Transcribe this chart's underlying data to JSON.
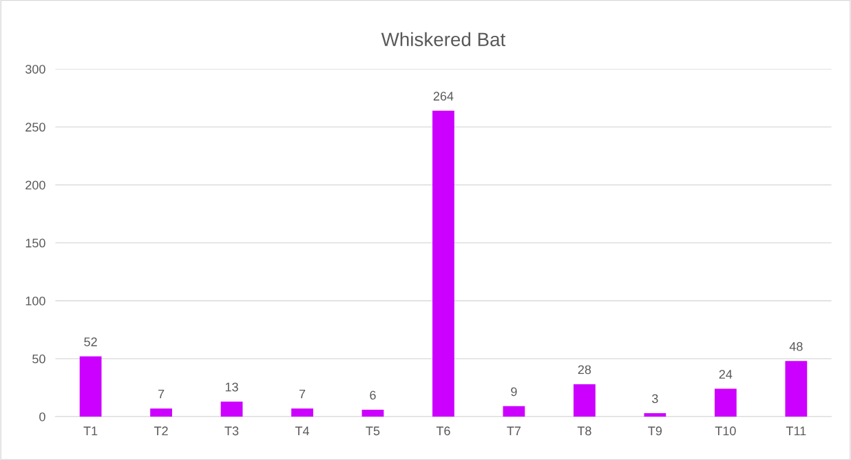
{
  "chart_data": {
    "type": "bar",
    "title": "Whiskered Bat",
    "categories": [
      "T1",
      "T2",
      "T3",
      "T4",
      "T5",
      "T6",
      "T7",
      "T8",
      "T9",
      "T10",
      "T11"
    ],
    "values": [
      52,
      7,
      13,
      7,
      6,
      264,
      9,
      28,
      3,
      24,
      48
    ],
    "color": "#cc00ff",
    "ylim": [
      0,
      300
    ],
    "yticks": [
      0,
      50,
      100,
      150,
      200,
      250,
      300
    ],
    "grid": "y",
    "data_labels": true,
    "legend": false
  }
}
